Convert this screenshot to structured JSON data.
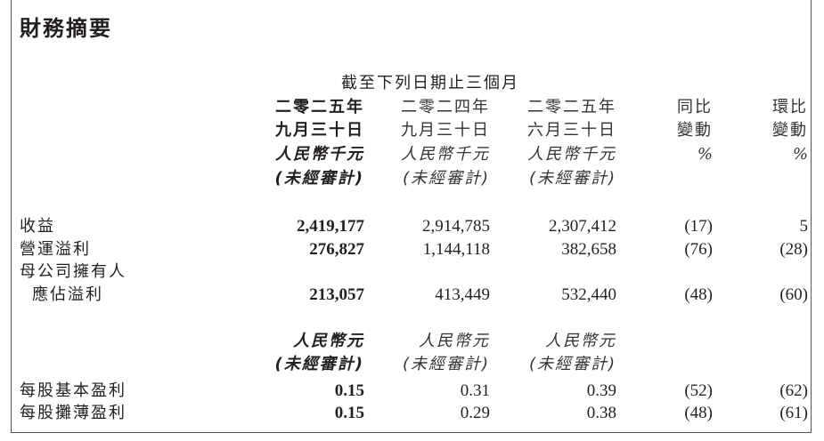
{
  "title": "財務摘要",
  "period_header": "截至下列日期止三個月",
  "columns": [
    {
      "year": "二零二五年",
      "date": "九月三十日",
      "unit": "人民幣千元",
      "audit": "(未經審計)",
      "unit2": "人民幣元",
      "audit2": "(未經審計)"
    },
    {
      "year": "二零二四年",
      "date": "九月三十日",
      "unit": "人民幣千元",
      "audit": "(未經審計)",
      "unit2": "人民幣元",
      "audit2": "(未經審計)"
    },
    {
      "year": "二零二五年",
      "date": "六月三十日",
      "unit": "人民幣千元",
      "audit": "(未經審計)",
      "unit2": "人民幣元",
      "audit2": "(未經審計)"
    },
    {
      "line1": "同比",
      "line2": "變動",
      "unit": "%"
    },
    {
      "line1": "環比",
      "line2": "變動",
      "unit": "%"
    }
  ],
  "rows": [
    {
      "label": "收益",
      "values": [
        "2,419,177",
        "2,914,785",
        "2,307,412",
        "(17)",
        "5"
      ]
    },
    {
      "label": "營運溢利",
      "values": [
        "276,827",
        "1,144,118",
        "382,658",
        "(76)",
        "(28)"
      ]
    },
    {
      "label": "母公司擁有人",
      "label2": "應佔溢利",
      "values": [
        "213,057",
        "413,449",
        "532,440",
        "(48)",
        "(60)"
      ]
    },
    {
      "label": "每股基本盈利",
      "values": [
        "0.15",
        "0.31",
        "0.39",
        "(52)",
        "(62)"
      ]
    },
    {
      "label": "每股攤薄盈利",
      "values": [
        "0.15",
        "0.29",
        "0.38",
        "(48)",
        "(61)"
      ]
    }
  ]
}
